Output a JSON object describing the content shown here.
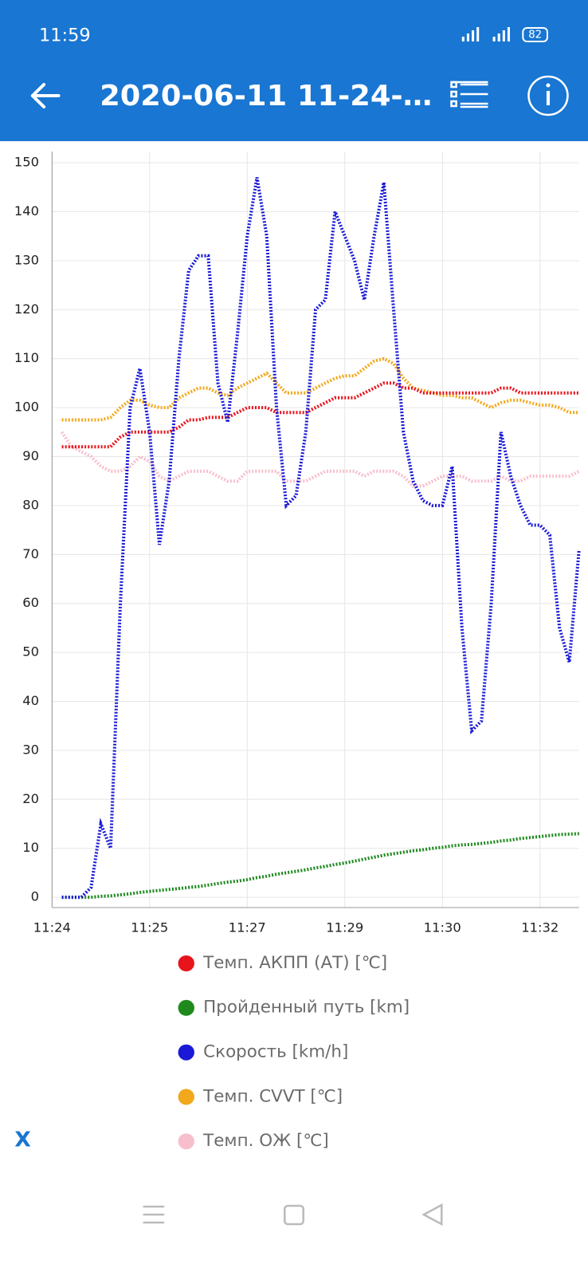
{
  "status_bar": {
    "time": "11:59",
    "battery": "82"
  },
  "app_bar": {
    "title": "2020-06-11 11-24-…"
  },
  "chart_data": {
    "type": "line",
    "categories": [
      "11:24",
      null,
      null,
      null,
      null,
      null,
      null,
      null,
      null,
      null,
      "11:25",
      null,
      null,
      null,
      null,
      null,
      null,
      null,
      null,
      null,
      "11:27",
      null,
      null,
      null,
      null,
      null,
      null,
      null,
      null,
      null,
      "11:29",
      null,
      null,
      null,
      null,
      null,
      null,
      null,
      null,
      null,
      "11:30",
      null,
      null,
      null,
      null,
      null,
      null,
      null,
      null,
      null,
      "11:32",
      null,
      null,
      null,
      null
    ],
    "ylim": [
      -2.1,
      152.3
    ],
    "yticks": [
      0,
      10,
      20,
      30,
      40,
      50,
      60,
      70,
      80,
      90,
      100,
      110,
      120,
      130,
      140,
      150
    ],
    "grid": true,
    "series": [
      {
        "name": "Темп. АКПП (АТ) [℃]",
        "color": "#e8141c",
        "values": [
          null,
          92,
          92,
          92,
          92,
          92,
          92,
          94,
          95,
          95,
          95,
          95,
          95,
          96,
          97.5,
          97.5,
          98,
          98,
          98,
          99,
          100,
          100,
          100,
          99,
          99,
          99,
          99,
          100,
          101,
          102,
          102,
          102,
          103,
          104,
          105,
          105,
          104,
          104,
          103,
          103,
          103,
          103,
          103,
          103,
          103,
          103,
          104,
          104,
          103,
          103,
          103,
          103,
          103,
          103,
          103
        ]
      },
      {
        "name": "Пройденный путь [km]",
        "color": "#1e8a1e",
        "values": [
          null,
          0,
          0,
          0,
          0,
          0.2,
          0.3,
          0.5,
          0.7,
          1,
          1.2,
          1.4,
          1.6,
          1.8,
          2,
          2.2,
          2.5,
          2.8,
          3.1,
          3.3,
          3.6,
          4,
          4.3,
          4.7,
          5,
          5.3,
          5.6,
          6,
          6.3,
          6.7,
          7,
          7.4,
          7.8,
          8.2,
          8.6,
          8.9,
          9.2,
          9.5,
          9.7,
          10,
          10.2,
          10.5,
          10.7,
          10.8,
          11,
          11.2,
          11.5,
          11.7,
          12,
          12.2,
          12.4,
          12.6,
          12.8,
          12.9,
          13
        ]
      },
      {
        "name": "Скорость [km/h]",
        "color": "#1a1ad6",
        "values": [
          null,
          0,
          0,
          0,
          2,
          15,
          10,
          60,
          100,
          108,
          95,
          72,
          85,
          110,
          128,
          131,
          131,
          105,
          97,
          115,
          135,
          147,
          135,
          100,
          80,
          82,
          95,
          120,
          122,
          140,
          135,
          130,
          122,
          135,
          146,
          120,
          95,
          85,
          81,
          80,
          80,
          88,
          55,
          34,
          36,
          60,
          95,
          86,
          80,
          76,
          76,
          74,
          55,
          48,
          71
        ]
      },
      {
        "name": "Темп. CVVT [℃]",
        "color": "#f2a81d",
        "values": [
          null,
          97.5,
          97.5,
          97.5,
          97.5,
          97.5,
          98,
          100,
          101.5,
          101.5,
          100.5,
          100,
          100,
          102,
          103,
          104,
          104,
          103,
          102.5,
          104,
          105,
          106,
          107,
          105,
          103,
          103,
          103,
          104,
          105,
          106,
          106.5,
          106.5,
          108,
          109.5,
          110,
          109,
          106,
          104,
          103.5,
          103,
          102.5,
          102.5,
          102,
          102,
          101,
          100,
          101,
          101.5,
          101.5,
          101,
          100.5,
          100.5,
          100,
          99,
          99
        ]
      },
      {
        "name": "Темп. ОЖ [℃]",
        "color": "#f7bfcc",
        "values": [
          null,
          95,
          92,
          91,
          90,
          88,
          87,
          87,
          88,
          90,
          89,
          86,
          85,
          86,
          87,
          87,
          87,
          86,
          85,
          85,
          87,
          87,
          87,
          87,
          85,
          85,
          85,
          86,
          87,
          87,
          87,
          87,
          86,
          87,
          87,
          87,
          86,
          84,
          84,
          85,
          86,
          86,
          86,
          85,
          85,
          85,
          86,
          85,
          85,
          86,
          86,
          86,
          86,
          86,
          87
        ]
      }
    ]
  },
  "close_button": "X"
}
